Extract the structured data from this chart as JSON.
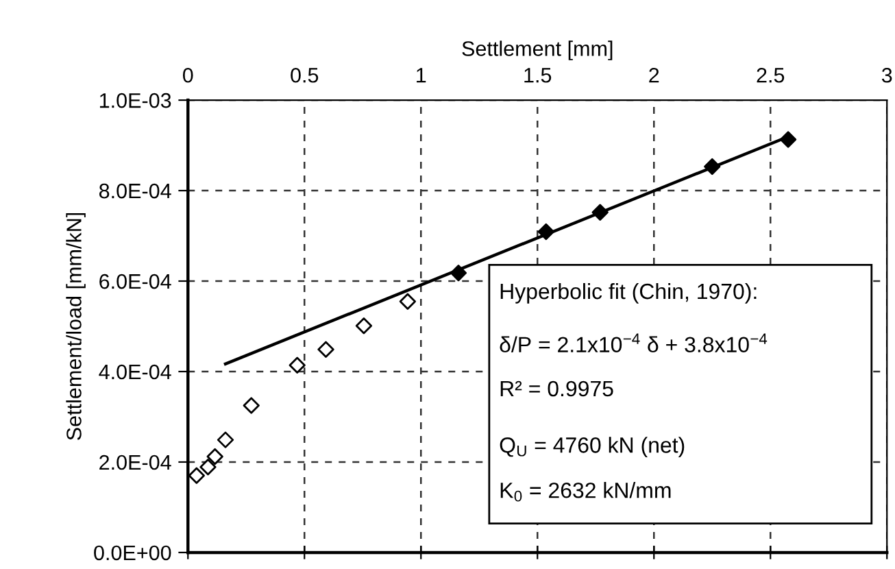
{
  "chart_data": {
    "type": "scatter",
    "xlabel": "Settlement [mm]",
    "ylabel": "Settlement/load [mm/kN]",
    "series": [
      {
        "color": "#000000",
        "marker": "diamond",
        "x": [
          0.037,
          0.086,
          0.116,
          0.161,
          0.272,
          0.469,
          0.592,
          0.755,
          0.943
        ],
        "values": [
          0.00017,
          0.000189,
          0.000212,
          0.000249,
          0.000325,
          0.000414,
          0.000449,
          0.000501,
          0.000555
        ]
      },
      {
        "color": "#000000",
        "marker": "diamond",
        "x": [
          1.161,
          1.537,
          1.769,
          2.25,
          2.576
        ],
        "values": [
          0.000618,
          0.000709,
          0.000752,
          0.000853,
          0.000913
        ]
      },
      {
        "type": "line",
        "color": "#000000",
        "line_style": "solid",
        "x": [
          0.161,
          2.58
        ],
        "values": [
          0.000417,
          0.00092
        ]
      }
    ],
    "xlim": [
      0,
      3
    ],
    "xticks": [
      0,
      0.5,
      1,
      1.5,
      2,
      2.5,
      3
    ],
    "ylim": [
      0,
      0.001
    ],
    "yticks": [
      {
        "value": 0,
        "label": "0.0E+00"
      },
      {
        "value": 0.0002,
        "label": "2.0E-04"
      },
      {
        "value": 0.0004,
        "label": "4.0E-04"
      },
      {
        "value": 0.0006,
        "label": "6.0E-04"
      },
      {
        "value": 0.0008,
        "label": "8.0E-04"
      },
      {
        "value": 0.001,
        "label": "1.0E-03"
      }
    ],
    "grid": true,
    "legend": false,
    "annotations": [
      "Hyperbolic fit (Chin, 1970):",
      "δ/P = 2.1x10$^{−4}$ δ + 3.8x10$^{−4}$",
      "R² = 0.9975",
      "Q$_{U}$ = 4760 kN (net)",
      "K$_{0}$ = 2632 kN/mm"
    ]
  }
}
